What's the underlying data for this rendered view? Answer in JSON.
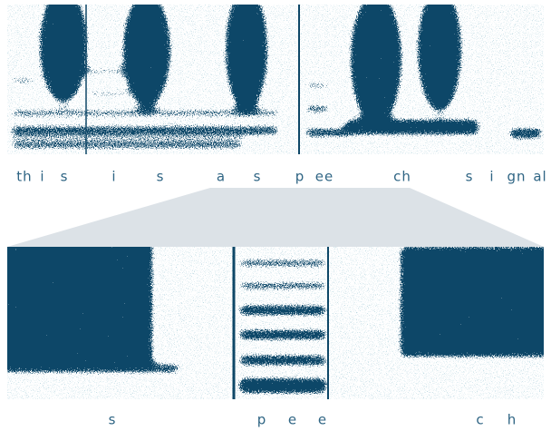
{
  "top_labels": [
    "th",
    "i",
    "s",
    "i",
    "s",
    "a",
    "s",
    "p",
    "ee",
    "ch",
    "s",
    "i",
    "gn",
    "al"
  ],
  "bottom_labels": [
    "s",
    "p",
    "e",
    "e",
    "c",
    "h"
  ]
}
